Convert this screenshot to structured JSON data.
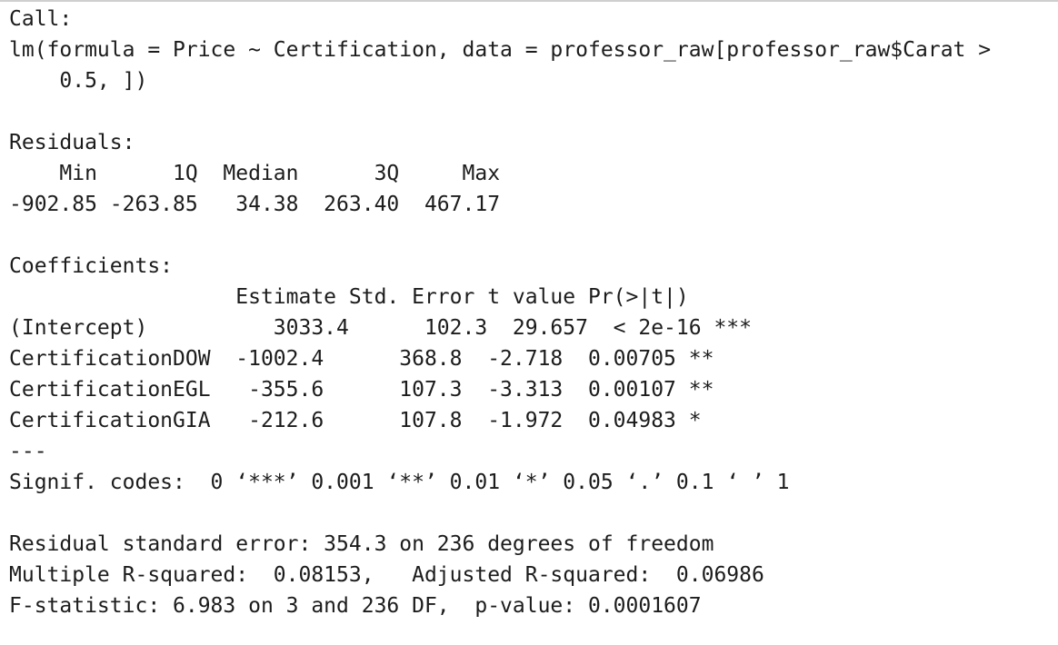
{
  "output": {
    "call_header": "Call:",
    "call_line1": "lm(formula = Price ~ Certification, data = professor_raw[professor_raw$Carat >",
    "call_line2": "    0.5, ])",
    "residuals_header": "Residuals:",
    "residuals_columns": "    Min      1Q  Median      3Q     Max ",
    "residuals_values": "-902.85 -263.85   34.38  263.40  467.17 ",
    "coefficients_header": "Coefficients:",
    "coef_columns": "                  Estimate Std. Error t value Pr(>|t|)    ",
    "coef_rows": [
      "(Intercept)          3033.4      102.3  29.657  < 2e-16 ***",
      "CertificationDOW  -1002.4      368.8  -2.718  0.00705 ** ",
      "CertificationEGL   -355.6      107.3  -3.313  0.00107 ** ",
      "CertificationGIA   -212.6      107.8  -1.972  0.04983 *  "
    ],
    "separator": "---",
    "signif_codes": "Signif. codes:  0 ‘***’ 0.001 ‘**’ 0.01 ‘*’ 0.05 ‘.’ 0.1 ‘ ’ 1",
    "residual_se": "Residual standard error: 354.3 on 236 degrees of freedom",
    "r_squared": "Multiple R-squared:  0.08153,\tAdjusted R-squared:  0.06986 ",
    "f_statistic": "F-statistic: 6.983 on 3 and 236 DF,  p-value: 0.0001607"
  }
}
